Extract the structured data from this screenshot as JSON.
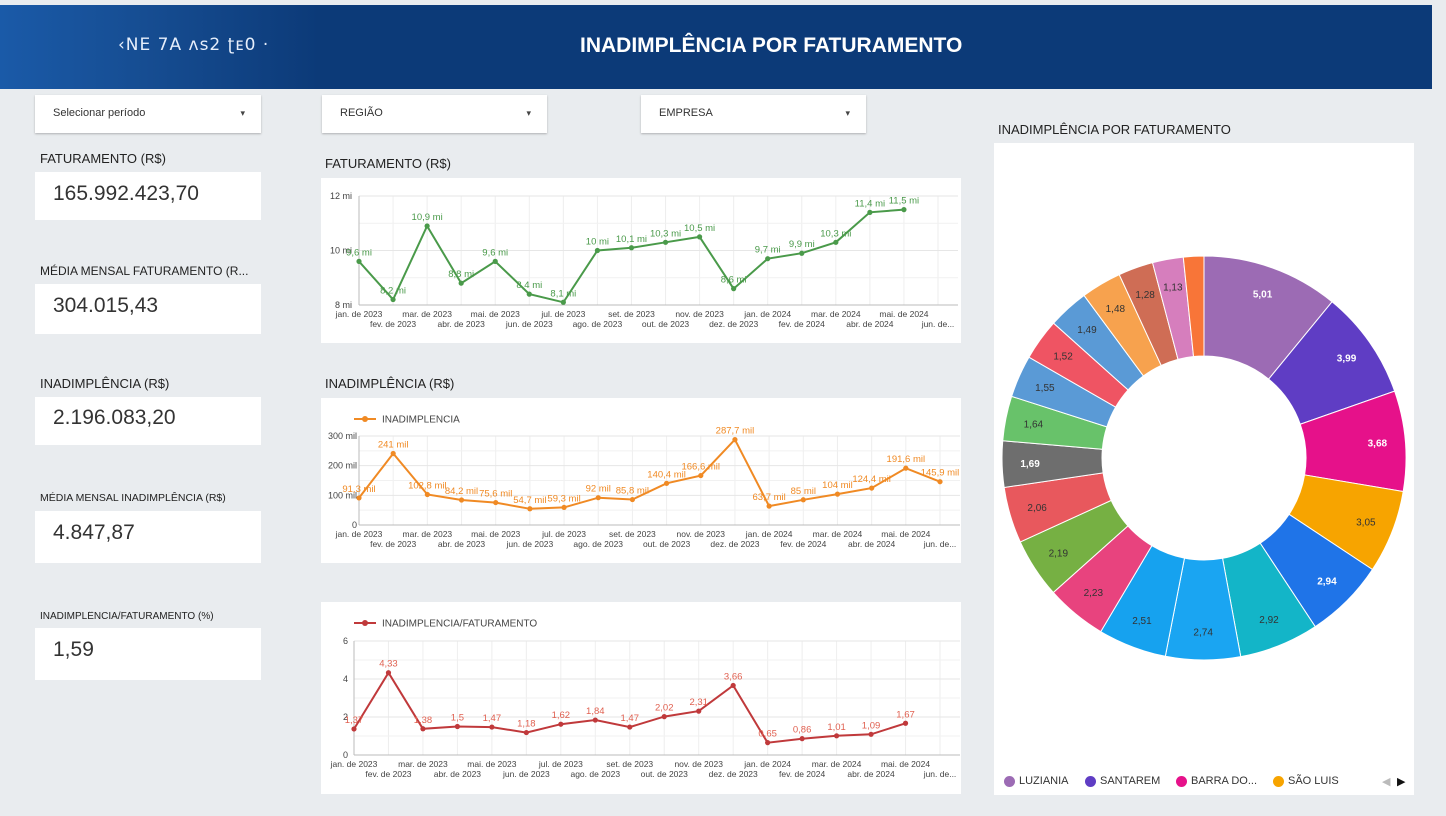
{
  "header": {
    "brand": "‹NE 7A ᴧs2 ʈᴇ0 ·",
    "title": "INADIMPLÊNCIA POR FATURAMENTO"
  },
  "filters": {
    "period": "Selecionar período",
    "region": "REGIÃO",
    "company": "EMPRESA"
  },
  "metrics": [
    {
      "label": "FATURAMENTO (R$)",
      "value": "165.992.423,70"
    },
    {
      "label": "MÉDIA MENSAL FATURAMENTO (R...",
      "value": "304.015,43"
    },
    {
      "label": "INADIMPLÊNCIA (R$)",
      "value": "2.196.083,20"
    },
    {
      "label": "MÉDIA MENSAL INADIMPLÊNCIA (R$)",
      "value": "4.847,87"
    },
    {
      "label": "INADIMPLÊNCIA/FATURAMENTO (%)",
      "value": "1,59"
    }
  ],
  "colors": {
    "header": "#0c3a78",
    "faturamento": "#4a9a4a",
    "inadimplencia": "#f08a24",
    "ratio": "#c0393b"
  },
  "chart_data": [
    {
      "type": "line",
      "title": "FATURAMENTO (R$)",
      "x": [
        "jan. de 2023",
        "fev. de 2023",
        "mar. de 2023",
        "abr. de 2023",
        "mai. de 2023",
        "jun. de 2023",
        "jul. de 2023",
        "ago. de 2023",
        "set. de 2023",
        "out. de 2023",
        "nov. de 2023",
        "dez. de 2023",
        "jan. de 2024",
        "fev. de 2024",
        "mar. de 2024",
        "abr. de 2024",
        "mai. de 2024",
        "jun. de 2024"
      ],
      "x_tick_labels": [
        "jan. de 2023",
        "fev. de 2023",
        "mar. de 2023",
        "abr. de 2023",
        "mai. de 2023",
        "jun. de 2023",
        "jul. de 2023",
        "ago. de 2023",
        "set. de 2023",
        "out. de 2023",
        "nov. de 2023",
        "dez. de 2023",
        "jan. de 2024",
        "fev. de 2024",
        "mar. de 2024",
        "abr. de 2024",
        "mai. de 2024",
        "jun. de..."
      ],
      "values": [
        9.6,
        8.2,
        10.9,
        8.8,
        9.6,
        8.4,
        8.1,
        10.0,
        10.1,
        10.3,
        10.5,
        8.6,
        9.7,
        9.9,
        10.3,
        11.4,
        11.5,
        null
      ],
      "data_labels": [
        "9,6 mi",
        "8,2 mi",
        "10,9 mi",
        "8,8 mi",
        "9,6 mi",
        "8,4 mi",
        "8,1 mi",
        "10 mi",
        "10,1 mi",
        "10,3 mi",
        "10,5 mi",
        "8,6 mi",
        "9,7 mi",
        "9,9 mi",
        "10,3 mi",
        "11,4 mi",
        "11,5 mi",
        ""
      ],
      "y_ticks": [
        "8 mi",
        "10 mi",
        "12 mi"
      ],
      "ylim": [
        8,
        12
      ],
      "unit": "mi",
      "grid": true
    },
    {
      "type": "line",
      "title": "INADIMPLÊNCIA (R$)",
      "series": [
        {
          "name": "INADIMPLENCIA"
        }
      ],
      "x_tick_labels": [
        "jan. de 2023",
        "fev. de 2023",
        "mar. de 2023",
        "abr. de 2023",
        "mai. de 2023",
        "jun. de 2023",
        "jul. de 2023",
        "ago. de 2023",
        "set. de 2023",
        "out. de 2023",
        "nov. de 2023",
        "dez. de 2023",
        "jan. de 2024",
        "fev. de 2024",
        "mar. de 2024",
        "abr. de 2024",
        "mai. de 2024",
        "jun. de..."
      ],
      "values": [
        91.3,
        241,
        102.8,
        84.2,
        75.6,
        54.7,
        59.3,
        92,
        85.8,
        140.4,
        166.6,
        287.7,
        63.7,
        85,
        104,
        124.4,
        191.6,
        145.9
      ],
      "data_labels": [
        "91,3 mil",
        "241 mil",
        "102,8 mil",
        "84,2 mil",
        "75,6 mil",
        "54,7 mil",
        "59,3 mil",
        "92 mil",
        "85,8 mil",
        "140,4 mil",
        "166,6 mil",
        "287,7 mil",
        "63,7 mil",
        "85 mil",
        "104 mil",
        "124,4 mil",
        "191,6 mil",
        "145,9 mil"
      ],
      "y_ticks": [
        "0",
        "100 mil",
        "200 mil",
        "300 mil"
      ],
      "ylim": [
        0,
        300
      ],
      "unit": "mil",
      "legend": "top-left",
      "grid": true
    },
    {
      "type": "line",
      "series": [
        {
          "name": "INADIMPLENCIA/FATURAMENTO"
        }
      ],
      "x_tick_labels": [
        "jan. de 2023",
        "fev. de 2023",
        "mar. de 2023",
        "abr. de 2023",
        "mai. de 2023",
        "jun. de 2023",
        "jul. de 2023",
        "ago. de 2023",
        "set. de 2023",
        "out. de 2023",
        "nov. de 2023",
        "dez. de 2023",
        "jan. de 2024",
        "fev. de 2024",
        "mar. de 2024",
        "abr. de 2024",
        "mai. de 2024",
        "jun. de..."
      ],
      "values": [
        1.37,
        4.33,
        1.38,
        1.5,
        1.47,
        1.18,
        1.62,
        1.84,
        1.47,
        2.02,
        2.31,
        3.66,
        0.65,
        0.86,
        1.01,
        1.09,
        1.67,
        null
      ],
      "data_labels": [
        "1,37",
        "4,33",
        "1,38",
        "1,5",
        "1,47",
        "1,18",
        "1,62",
        "1,84",
        "1,47",
        "2,02",
        "2,31",
        "3,66",
        "0,65",
        "0,86",
        "1,01",
        "1,09",
        "1,67",
        ""
      ],
      "y_ticks": [
        "0",
        "2",
        "4",
        "6"
      ],
      "ylim": [
        0,
        6
      ],
      "legend": "top-left",
      "grid": true
    },
    {
      "type": "pie",
      "subtype": "donut",
      "title": "INADIMPLÊNCIA POR FATURAMENTO",
      "values": [
        5.01,
        3.99,
        3.68,
        3.05,
        2.94,
        2.92,
        2.74,
        2.51,
        2.23,
        2.19,
        2.06,
        1.69,
        1.64,
        1.55,
        1.52,
        1.49,
        1.48,
        1.28,
        1.13,
        0.75
      ],
      "labels": [
        "5,01",
        "3,99",
        "3,68",
        "3,05",
        "2,94",
        "2,92",
        "2,74",
        "2,51",
        "2,23",
        "2,19",
        "2,06",
        "1,69",
        "1,64",
        "1,55",
        "1,52",
        "1,49",
        "1,48",
        "1,28",
        "1,13",
        ""
      ],
      "colors": [
        "#9c6bb4",
        "#5f3dc4",
        "#e6118a",
        "#f7a400",
        "#1f74e8",
        "#13b5c8",
        "#1aa5f2",
        "#16a2ef",
        "#e8437e",
        "#76b043",
        "#e8585d",
        "#6e6e6e",
        "#68c26a",
        "#5a9ad6",
        "#ef5463",
        "#5a9ad6",
        "#f7a24e",
        "#cf6d55",
        "#d67ebd",
        "#f87538"
      ],
      "legend_entries": [
        {
          "name": "LUZIANIA",
          "color": "#9c6bb4"
        },
        {
          "name": "SANTAREM",
          "color": "#5f3dc4"
        },
        {
          "name": "BARRA DO...",
          "color": "#e6118a"
        },
        {
          "name": "SÃO LUIS",
          "color": "#f7a400"
        }
      ],
      "legend_position": "bottom"
    }
  ]
}
